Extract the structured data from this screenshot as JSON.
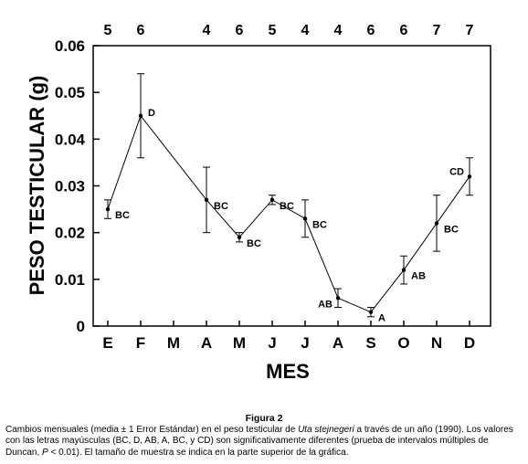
{
  "chart_data": {
    "type": "line",
    "xlabel": "MES",
    "ylabel": "PESO TESTICULAR (g)",
    "ylim": [
      0,
      0.06
    ],
    "yticks": [
      "0",
      "0.01",
      "0.02",
      "0.03",
      "0.04",
      "0.05",
      "0.06"
    ],
    "categories": [
      "E",
      "F",
      "M",
      "A",
      "M",
      "J",
      "J",
      "A",
      "S",
      "O",
      "N",
      "D"
    ],
    "sample_sizes": [
      "5",
      "6",
      "",
      "4",
      "6",
      "5",
      "4",
      "4",
      "6",
      "6",
      "7",
      "7"
    ],
    "series": [
      {
        "values": [
          0.025,
          0.045,
          null,
          0.027,
          0.019,
          0.027,
          0.023,
          0.006,
          0.003,
          0.012,
          0.022,
          0.032
        ],
        "error": [
          0.002,
          0.009,
          null,
          0.007,
          0.001,
          0.001,
          0.004,
          0.002,
          0.001,
          0.003,
          0.006,
          0.004
        ],
        "letters": [
          "BC",
          "D",
          "",
          "BC",
          "BC",
          "BC",
          "BC",
          "AB",
          "A",
          "AB",
          "BC",
          "CD"
        ]
      }
    ],
    "grid": false,
    "legend": "none"
  },
  "caption": {
    "title": "Figura 2",
    "text_before": "Cambios mensuales (media ± 1 Error Estándar) en el peso testicular de ",
    "species": "Uta stejnegeri",
    "text_mid": " a través de un año (1990). Los valores con las letras mayúsculas (BC, D, AB, A, BC, y CD) son significativamente diferentes (prueba de intervalos múltiples de Duncan, ",
    "p_symbol": "P",
    "text_after": " < 0.01). El tamaño de muestra se indica en la parte superior de la gráfica."
  }
}
